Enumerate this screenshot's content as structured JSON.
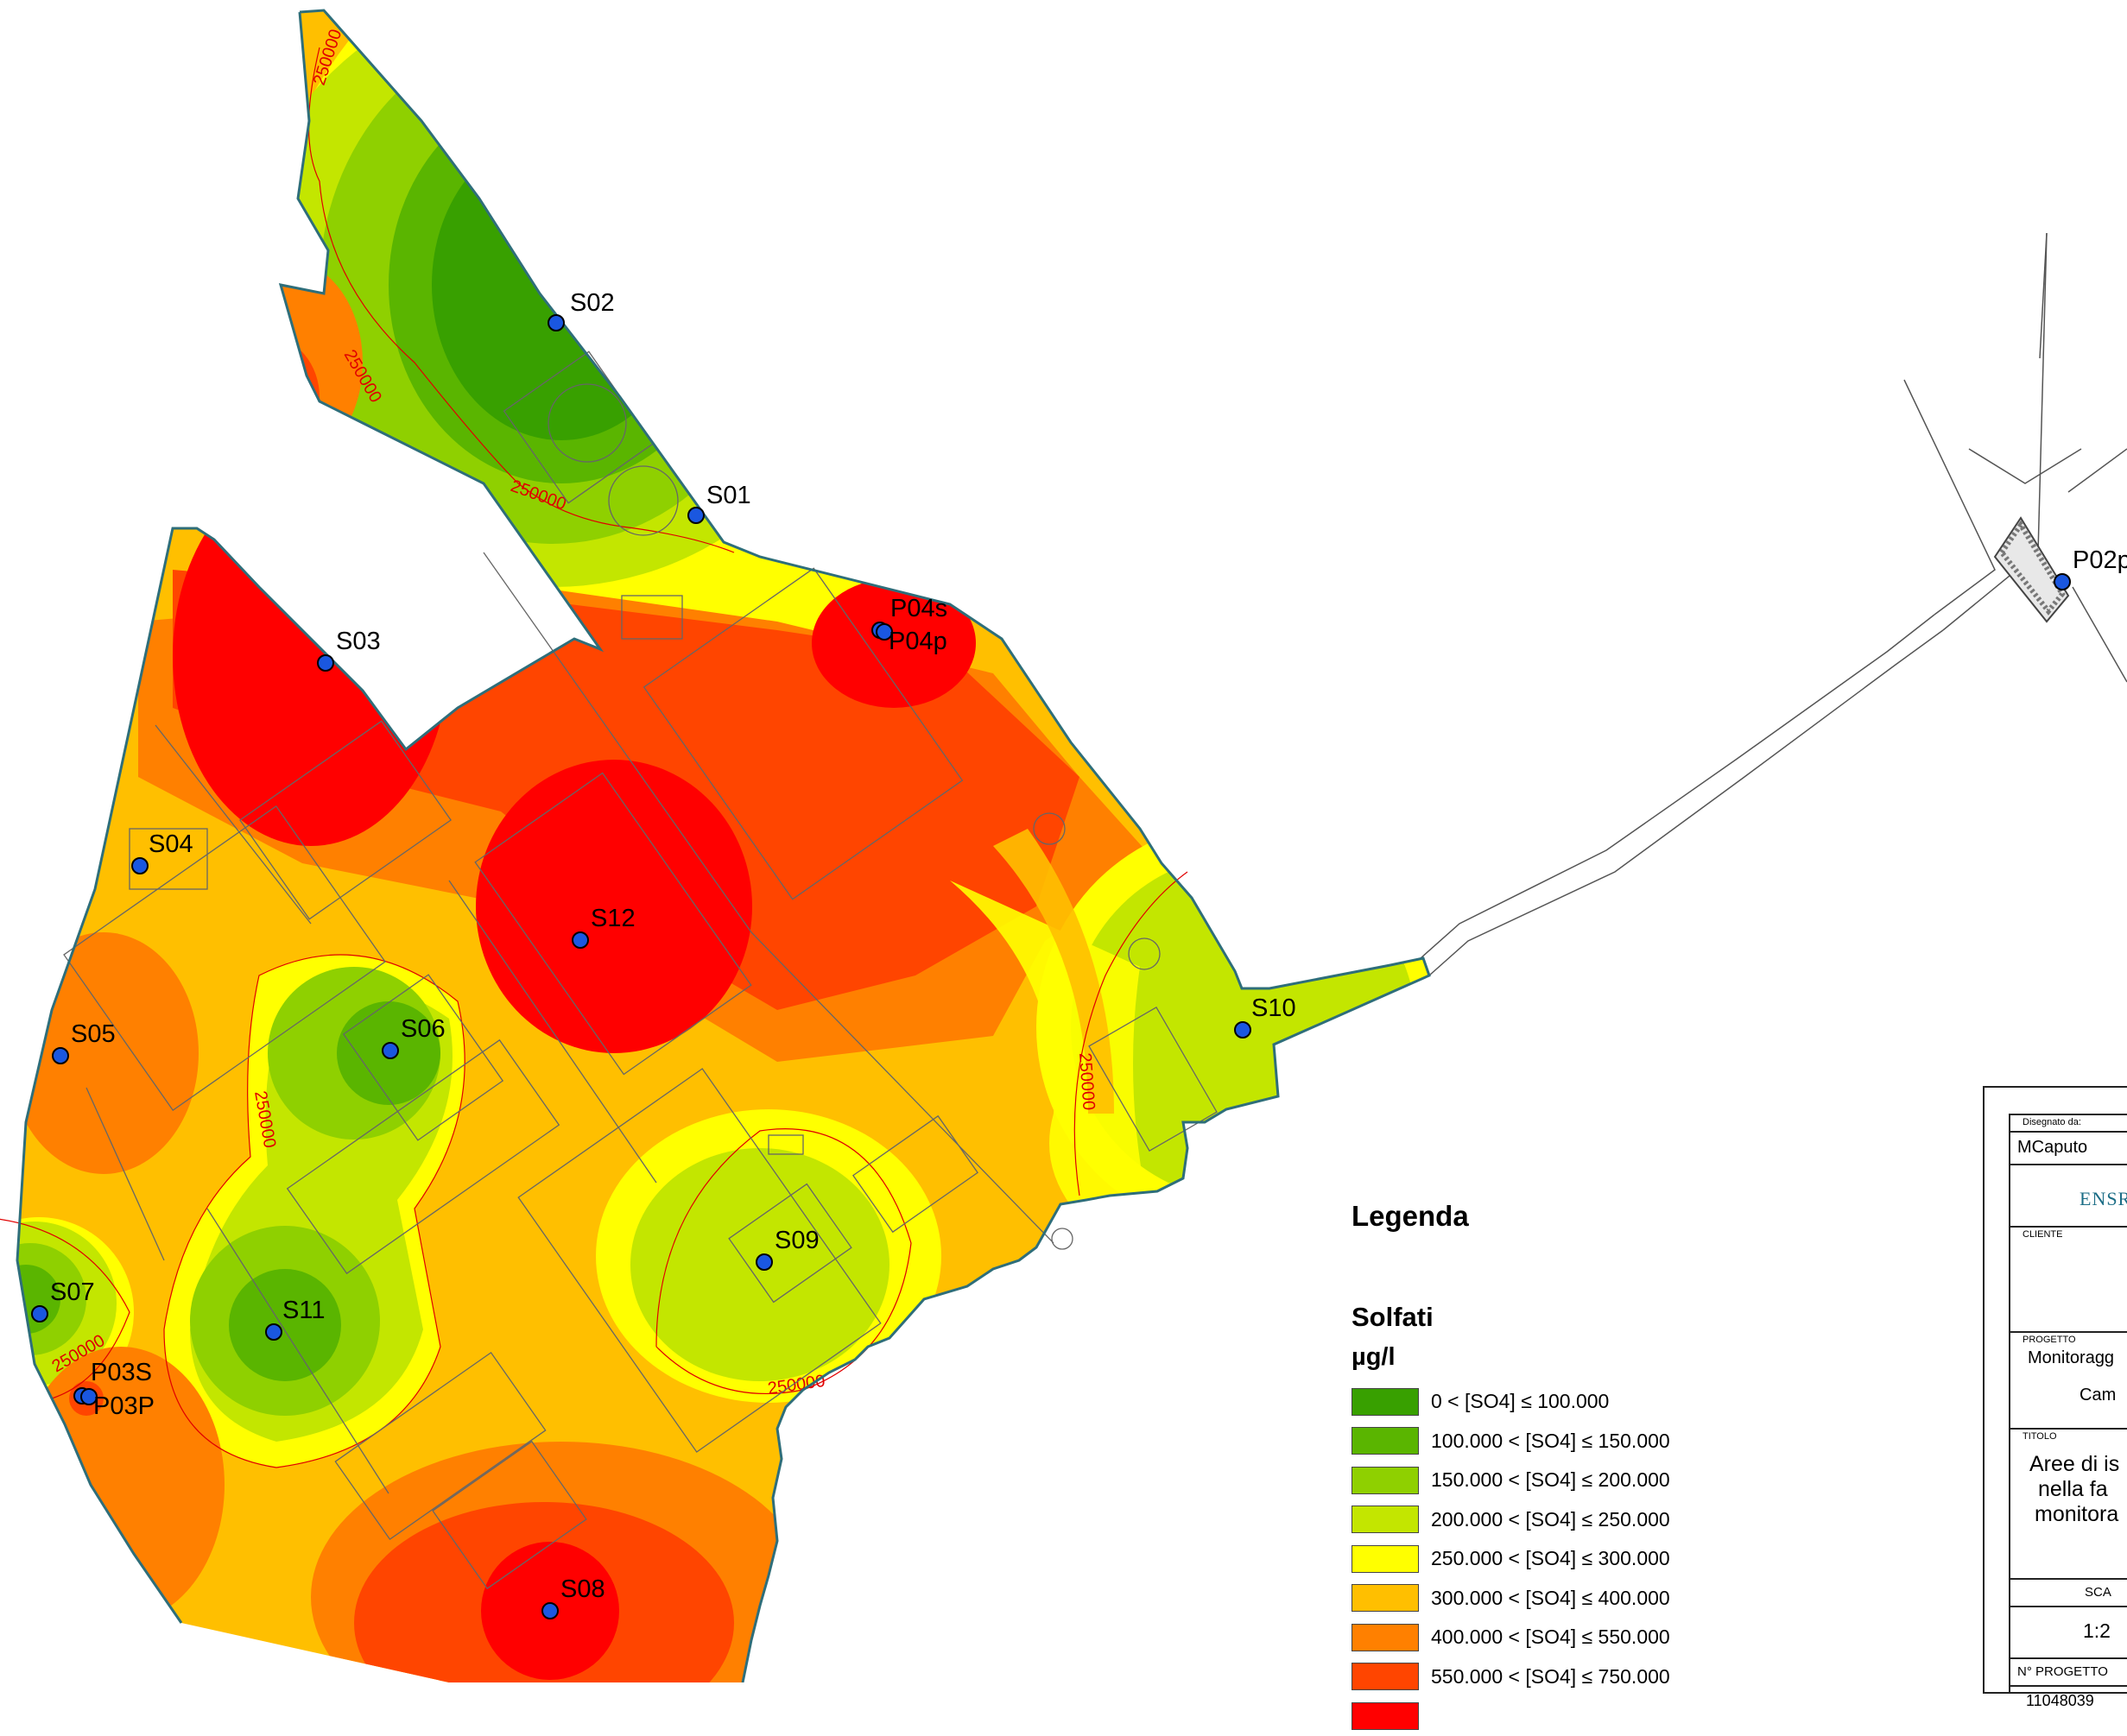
{
  "map": {
    "contour_label": "250000",
    "stations": [
      {
        "id": "S02",
        "label": "S02"
      },
      {
        "id": "S01",
        "label": "S01"
      },
      {
        "id": "S03",
        "label": "S03"
      },
      {
        "id": "P04s",
        "label": "P04s"
      },
      {
        "id": "P04p",
        "label": "P04p"
      },
      {
        "id": "S04",
        "label": "S04"
      },
      {
        "id": "S12",
        "label": "S12"
      },
      {
        "id": "S05",
        "label": "S05"
      },
      {
        "id": "S06",
        "label": "S06"
      },
      {
        "id": "S10",
        "label": "S10"
      },
      {
        "id": "S09",
        "label": "S09"
      },
      {
        "id": "S07",
        "label": "S07"
      },
      {
        "id": "S11",
        "label": "S11"
      },
      {
        "id": "P03S",
        "label": "P03S"
      },
      {
        "id": "P03P",
        "label": "P03P"
      },
      {
        "id": "S08",
        "label": "S08"
      },
      {
        "id": "P02p",
        "label": "P02p"
      }
    ],
    "station_color": "#1a57e0"
  },
  "legend": {
    "title": "Legenda",
    "parameter": "Solfati",
    "unit": "µg/l",
    "classes": [
      {
        "label": "0 < [SO4] ≤ 100.000",
        "color": "#38a000"
      },
      {
        "label": "100.000 < [SO4] ≤ 150.000",
        "color": "#5ab500"
      },
      {
        "label": "150.000 < [SO4] ≤ 200.000",
        "color": "#8fd000"
      },
      {
        "label": "200.000 < [SO4] ≤ 250.000",
        "color": "#c3e600"
      },
      {
        "label": "250.000 < [SO4] ≤ 300.000",
        "color": "#ffff00"
      },
      {
        "label": "300.000 < [SO4] ≤ 400.000",
        "color": "#ffbf00"
      },
      {
        "label": "400.000 < [SO4] ≤ 550.000",
        "color": "#ff8000"
      },
      {
        "label": "550.000 < [SO4] ≤ 750.000",
        "color": "#ff4500"
      },
      {
        "label": "",
        "color": "#ff0000"
      }
    ]
  },
  "title_block": {
    "drawn_by_label": "Disegnato da:",
    "drawn_by": "MCaputo",
    "company": "ENSR",
    "client_label": "CLIENTE",
    "project_label": "PROGETTO",
    "project_line1": "Monitoragg",
    "project_line2": "Cam",
    "title_label": "TITOLO",
    "title_line1": "Aree di is",
    "title_line2": "nella fa",
    "title_line3": "monitora",
    "scale_label": "SCA",
    "scale_value": "1:2",
    "project_no_label": "N° PROGETTO",
    "project_no": "11048039"
  }
}
